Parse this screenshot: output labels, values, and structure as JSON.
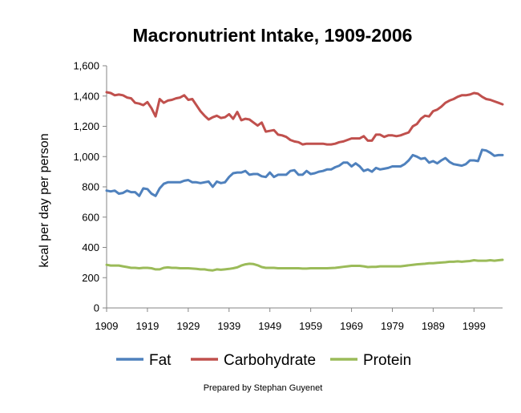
{
  "chart_data": {
    "type": "line",
    "title": "Macronutrient Intake, 1909-2006",
    "xlabel": "",
    "ylabel": "kcal per day per person",
    "xlim": [
      1909,
      2006
    ],
    "ylim": [
      0,
      1600
    ],
    "xticks": [
      "1909",
      "1919",
      "1929",
      "1939",
      "1949",
      "1959",
      "1969",
      "1979",
      "1989",
      "1999"
    ],
    "yticks": [
      "0",
      "200",
      "400",
      "600",
      "800",
      "1,000",
      "1,200",
      "1,400",
      "1,600"
    ],
    "grid": false,
    "legend": "bottom",
    "credit": "Prepared by Stephan Guyenet",
    "series": [
      {
        "name": "Fat",
        "color": "#4f81bd",
        "points": [
          [
            1909,
            775
          ],
          [
            1910,
            770
          ],
          [
            1911,
            775
          ],
          [
            1912,
            755
          ],
          [
            1913,
            760
          ],
          [
            1914,
            775
          ],
          [
            1915,
            765
          ],
          [
            1916,
            765
          ],
          [
            1917,
            740
          ],
          [
            1918,
            790
          ],
          [
            1919,
            785
          ],
          [
            1920,
            755
          ],
          [
            1921,
            740
          ],
          [
            1922,
            790
          ],
          [
            1923,
            820
          ],
          [
            1924,
            830
          ],
          [
            1925,
            830
          ],
          [
            1926,
            830
          ],
          [
            1927,
            830
          ],
          [
            1928,
            840
          ],
          [
            1929,
            845
          ],
          [
            1930,
            830
          ],
          [
            1931,
            830
          ],
          [
            1932,
            825
          ],
          [
            1933,
            830
          ],
          [
            1934,
            835
          ],
          [
            1935,
            800
          ],
          [
            1936,
            835
          ],
          [
            1937,
            825
          ],
          [
            1938,
            830
          ],
          [
            1939,
            865
          ],
          [
            1940,
            890
          ],
          [
            1941,
            895
          ],
          [
            1942,
            895
          ],
          [
            1943,
            905
          ],
          [
            1944,
            880
          ],
          [
            1945,
            885
          ],
          [
            1946,
            885
          ],
          [
            1947,
            870
          ],
          [
            1948,
            865
          ],
          [
            1949,
            895
          ],
          [
            1950,
            865
          ],
          [
            1951,
            880
          ],
          [
            1952,
            880
          ],
          [
            1953,
            880
          ],
          [
            1954,
            905
          ],
          [
            1955,
            910
          ],
          [
            1956,
            880
          ],
          [
            1957,
            880
          ],
          [
            1958,
            905
          ],
          [
            1959,
            885
          ],
          [
            1960,
            890
          ],
          [
            1961,
            900
          ],
          [
            1962,
            905
          ],
          [
            1963,
            915
          ],
          [
            1964,
            915
          ],
          [
            1965,
            930
          ],
          [
            1966,
            940
          ],
          [
            1967,
            960
          ],
          [
            1968,
            960
          ],
          [
            1969,
            935
          ],
          [
            1970,
            955
          ],
          [
            1971,
            935
          ],
          [
            1972,
            905
          ],
          [
            1973,
            915
          ],
          [
            1974,
            900
          ],
          [
            1975,
            925
          ],
          [
            1976,
            915
          ],
          [
            1977,
            920
          ],
          [
            1978,
            925
          ],
          [
            1979,
            935
          ],
          [
            1980,
            935
          ],
          [
            1981,
            935
          ],
          [
            1982,
            950
          ],
          [
            1983,
            975
          ],
          [
            1984,
            1010
          ],
          [
            1985,
            1000
          ],
          [
            1986,
            985
          ],
          [
            1987,
            990
          ],
          [
            1988,
            960
          ],
          [
            1989,
            970
          ],
          [
            1990,
            955
          ],
          [
            1991,
            975
          ],
          [
            1992,
            990
          ],
          [
            1993,
            965
          ],
          [
            1994,
            950
          ],
          [
            1995,
            945
          ],
          [
            1996,
            940
          ],
          [
            1997,
            950
          ],
          [
            1998,
            975
          ],
          [
            1999,
            975
          ],
          [
            2000,
            970
          ],
          [
            2001,
            1045
          ],
          [
            2002,
            1040
          ],
          [
            2003,
            1025
          ],
          [
            2004,
            1005
          ],
          [
            2005,
            1010
          ],
          [
            2006,
            1010
          ]
        ]
      },
      {
        "name": "Carbohydrate",
        "color": "#c0504d",
        "points": [
          [
            1909,
            1425
          ],
          [
            1910,
            1420
          ],
          [
            1911,
            1405
          ],
          [
            1912,
            1410
          ],
          [
            1913,
            1405
          ],
          [
            1914,
            1390
          ],
          [
            1915,
            1385
          ],
          [
            1916,
            1355
          ],
          [
            1917,
            1350
          ],
          [
            1918,
            1340
          ],
          [
            1919,
            1360
          ],
          [
            1920,
            1320
          ],
          [
            1921,
            1265
          ],
          [
            1922,
            1380
          ],
          [
            1923,
            1355
          ],
          [
            1924,
            1370
          ],
          [
            1925,
            1375
          ],
          [
            1926,
            1385
          ],
          [
            1927,
            1390
          ],
          [
            1928,
            1405
          ],
          [
            1929,
            1375
          ],
          [
            1930,
            1380
          ],
          [
            1931,
            1340
          ],
          [
            1932,
            1300
          ],
          [
            1933,
            1270
          ],
          [
            1934,
            1245
          ],
          [
            1935,
            1260
          ],
          [
            1936,
            1270
          ],
          [
            1937,
            1255
          ],
          [
            1938,
            1260
          ],
          [
            1939,
            1280
          ],
          [
            1940,
            1250
          ],
          [
            1941,
            1295
          ],
          [
            1942,
            1240
          ],
          [
            1943,
            1250
          ],
          [
            1944,
            1245
          ],
          [
            1945,
            1225
          ],
          [
            1946,
            1205
          ],
          [
            1947,
            1225
          ],
          [
            1948,
            1165
          ],
          [
            1949,
            1170
          ],
          [
            1950,
            1175
          ],
          [
            1951,
            1145
          ],
          [
            1952,
            1140
          ],
          [
            1953,
            1130
          ],
          [
            1954,
            1110
          ],
          [
            1955,
            1100
          ],
          [
            1956,
            1095
          ],
          [
            1957,
            1080
          ],
          [
            1958,
            1085
          ],
          [
            1959,
            1085
          ],
          [
            1960,
            1085
          ],
          [
            1961,
            1085
          ],
          [
            1962,
            1085
          ],
          [
            1963,
            1080
          ],
          [
            1964,
            1080
          ],
          [
            1965,
            1085
          ],
          [
            1966,
            1095
          ],
          [
            1967,
            1100
          ],
          [
            1968,
            1110
          ],
          [
            1969,
            1120
          ],
          [
            1970,
            1120
          ],
          [
            1971,
            1120
          ],
          [
            1972,
            1135
          ],
          [
            1973,
            1105
          ],
          [
            1974,
            1105
          ],
          [
            1975,
            1145
          ],
          [
            1976,
            1145
          ],
          [
            1977,
            1130
          ],
          [
            1978,
            1140
          ],
          [
            1979,
            1140
          ],
          [
            1980,
            1135
          ],
          [
            1981,
            1140
          ],
          [
            1982,
            1150
          ],
          [
            1983,
            1160
          ],
          [
            1984,
            1200
          ],
          [
            1985,
            1215
          ],
          [
            1986,
            1250
          ],
          [
            1987,
            1270
          ],
          [
            1988,
            1265
          ],
          [
            1989,
            1300
          ],
          [
            1990,
            1310
          ],
          [
            1991,
            1330
          ],
          [
            1992,
            1355
          ],
          [
            1993,
            1370
          ],
          [
            1994,
            1380
          ],
          [
            1995,
            1395
          ],
          [
            1996,
            1405
          ],
          [
            1997,
            1405
          ],
          [
            1998,
            1410
          ],
          [
            1999,
            1420
          ],
          [
            2000,
            1415
          ],
          [
            2001,
            1395
          ],
          [
            2002,
            1380
          ],
          [
            2003,
            1375
          ],
          [
            2004,
            1365
          ],
          [
            2005,
            1355
          ],
          [
            2006,
            1345
          ]
        ]
      },
      {
        "name": "Protein",
        "color": "#9bbb59",
        "points": [
          [
            1909,
            285
          ],
          [
            1910,
            280
          ],
          [
            1911,
            280
          ],
          [
            1912,
            280
          ],
          [
            1913,
            275
          ],
          [
            1914,
            270
          ],
          [
            1915,
            265
          ],
          [
            1916,
            265
          ],
          [
            1917,
            262
          ],
          [
            1918,
            265
          ],
          [
            1919,
            265
          ],
          [
            1920,
            262
          ],
          [
            1921,
            255
          ],
          [
            1922,
            255
          ],
          [
            1923,
            265
          ],
          [
            1924,
            268
          ],
          [
            1925,
            265
          ],
          [
            1926,
            265
          ],
          [
            1927,
            262
          ],
          [
            1928,
            262
          ],
          [
            1929,
            262
          ],
          [
            1930,
            260
          ],
          [
            1931,
            258
          ],
          [
            1932,
            255
          ],
          [
            1933,
            255
          ],
          [
            1934,
            250
          ],
          [
            1935,
            248
          ],
          [
            1936,
            255
          ],
          [
            1937,
            252
          ],
          [
            1938,
            255
          ],
          [
            1939,
            258
          ],
          [
            1940,
            262
          ],
          [
            1941,
            268
          ],
          [
            1942,
            280
          ],
          [
            1943,
            288
          ],
          [
            1944,
            292
          ],
          [
            1945,
            290
          ],
          [
            1946,
            282
          ],
          [
            1947,
            270
          ],
          [
            1948,
            265
          ],
          [
            1949,
            265
          ],
          [
            1950,
            265
          ],
          [
            1951,
            262
          ],
          [
            1952,
            262
          ],
          [
            1953,
            262
          ],
          [
            1954,
            262
          ],
          [
            1955,
            262
          ],
          [
            1956,
            262
          ],
          [
            1957,
            260
          ],
          [
            1958,
            260
          ],
          [
            1959,
            262
          ],
          [
            1960,
            262
          ],
          [
            1961,
            262
          ],
          [
            1962,
            262
          ],
          [
            1963,
            262
          ],
          [
            1964,
            264
          ],
          [
            1965,
            265
          ],
          [
            1966,
            268
          ],
          [
            1967,
            272
          ],
          [
            1968,
            275
          ],
          [
            1969,
            278
          ],
          [
            1970,
            278
          ],
          [
            1971,
            278
          ],
          [
            1972,
            275
          ],
          [
            1973,
            270
          ],
          [
            1974,
            272
          ],
          [
            1975,
            272
          ],
          [
            1976,
            275
          ],
          [
            1977,
            275
          ],
          [
            1978,
            275
          ],
          [
            1979,
            275
          ],
          [
            1980,
            275
          ],
          [
            1981,
            275
          ],
          [
            1982,
            278
          ],
          [
            1983,
            282
          ],
          [
            1984,
            285
          ],
          [
            1985,
            288
          ],
          [
            1986,
            290
          ],
          [
            1987,
            292
          ],
          [
            1988,
            295
          ],
          [
            1989,
            295
          ],
          [
            1990,
            298
          ],
          [
            1991,
            300
          ],
          [
            1992,
            302
          ],
          [
            1993,
            305
          ],
          [
            1994,
            305
          ],
          [
            1995,
            308
          ],
          [
            1996,
            305
          ],
          [
            1997,
            308
          ],
          [
            1998,
            310
          ],
          [
            1999,
            315
          ],
          [
            2000,
            312
          ],
          [
            2001,
            312
          ],
          [
            2002,
            312
          ],
          [
            2003,
            315
          ],
          [
            2004,
            312
          ],
          [
            2005,
            315
          ],
          [
            2006,
            318
          ]
        ]
      }
    ]
  }
}
